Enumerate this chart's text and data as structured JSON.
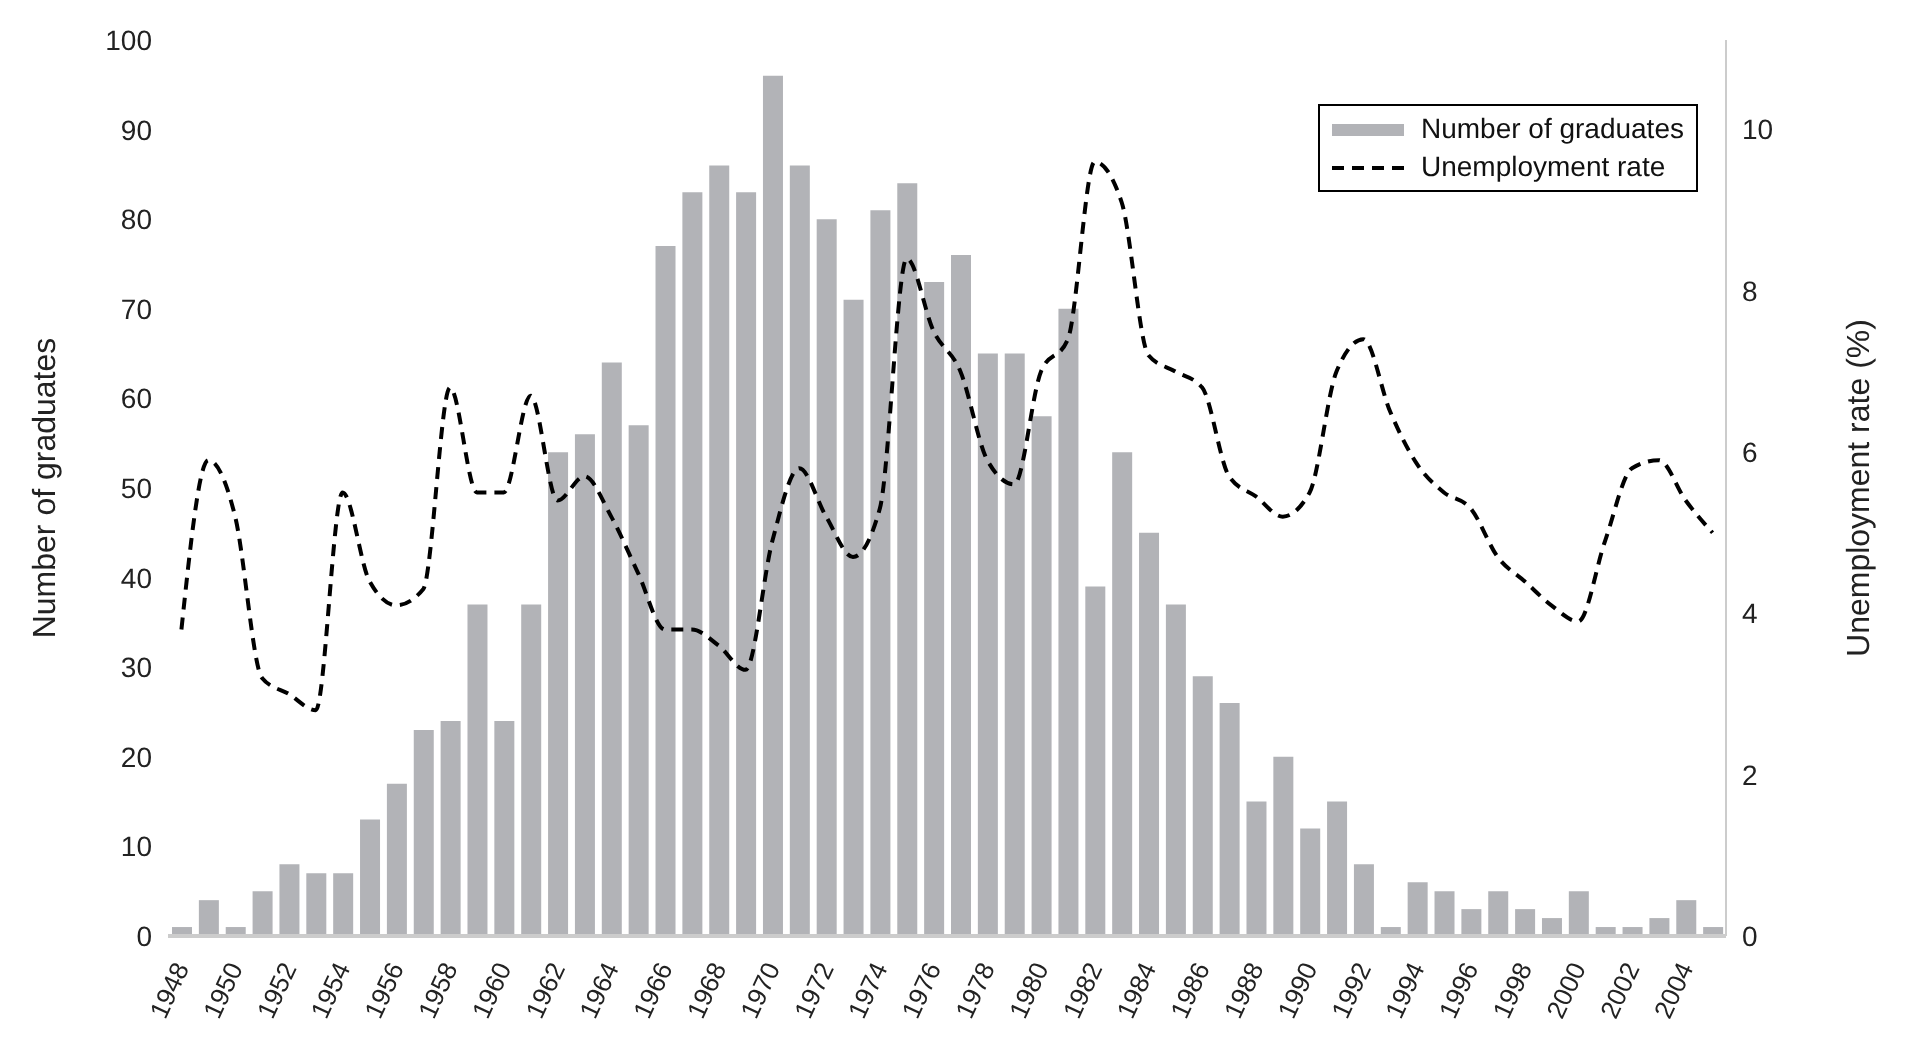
{
  "chart_data": {
    "type": "bar",
    "categories": [
      "1948",
      null,
      "1950",
      null,
      "1952",
      null,
      "1954",
      null,
      "1956",
      null,
      "1958",
      null,
      "1960",
      null,
      "1962",
      null,
      "1964",
      null,
      "1966",
      null,
      "1968",
      null,
      "1970",
      null,
      "1972",
      null,
      "1974",
      null,
      "1976",
      null,
      "1978",
      null,
      "1980",
      null,
      "1982",
      null,
      "1984",
      null,
      "1986",
      null,
      "1988",
      null,
      "1990",
      null,
      "1992",
      null,
      "1994",
      null,
      "1996",
      null,
      "1998",
      null,
      "2000",
      null,
      "2002",
      null,
      "2004",
      null
    ],
    "series": [
      {
        "name": "Number of graduates",
        "color": "#b2b3b7",
        "values": [
          1,
          4,
          1,
          5,
          8,
          7,
          7,
          13,
          17,
          23,
          24,
          37,
          24,
          37,
          54,
          56,
          64,
          57,
          77,
          83,
          86,
          83,
          96,
          86,
          80,
          71,
          81,
          84,
          73,
          76,
          65,
          65,
          58,
          70,
          39,
          54,
          45,
          37,
          29,
          26,
          15,
          20,
          12,
          15,
          8,
          1,
          6,
          5,
          3,
          5,
          3,
          2,
          5,
          1,
          1,
          2,
          4,
          1
        ]
      },
      {
        "name": "Unemployment rate",
        "type": "line",
        "axis": "y2",
        "color": "#000000",
        "values": [
          3.8,
          5.9,
          5.2,
          3.2,
          3.0,
          2.8,
          5.5,
          4.4,
          4.1,
          4.3,
          6.8,
          5.5,
          5.5,
          6.7,
          5.4,
          5.7,
          5.2,
          4.5,
          3.8,
          3.8,
          3.6,
          3.3,
          4.9,
          5.8,
          5.2,
          4.7,
          5.3,
          8.4,
          7.5,
          7.0,
          5.9,
          5.6,
          7.0,
          7.4,
          9.6,
          9.1,
          7.2,
          7.0,
          6.8,
          5.7,
          5.45,
          5.2,
          5.5,
          7.0,
          7.4,
          6.5,
          5.85,
          5.5,
          5.3,
          4.7,
          4.4,
          4.1,
          3.9,
          4.9,
          5.8,
          5.9,
          5.4,
          5.0
        ]
      }
    ],
    "ylabel": "Number of graduates",
    "y2label": "Unemployment rate (%)",
    "ylim": [
      0,
      100
    ],
    "yticks": [
      0,
      10,
      20,
      30,
      40,
      50,
      60,
      70,
      80,
      90,
      100
    ],
    "y2lim": [
      0,
      11.11
    ],
    "y2ticks": [
      0,
      2,
      4,
      6,
      8,
      10
    ],
    "grid": false,
    "legend": "top right",
    "line_style": "dashed"
  }
}
